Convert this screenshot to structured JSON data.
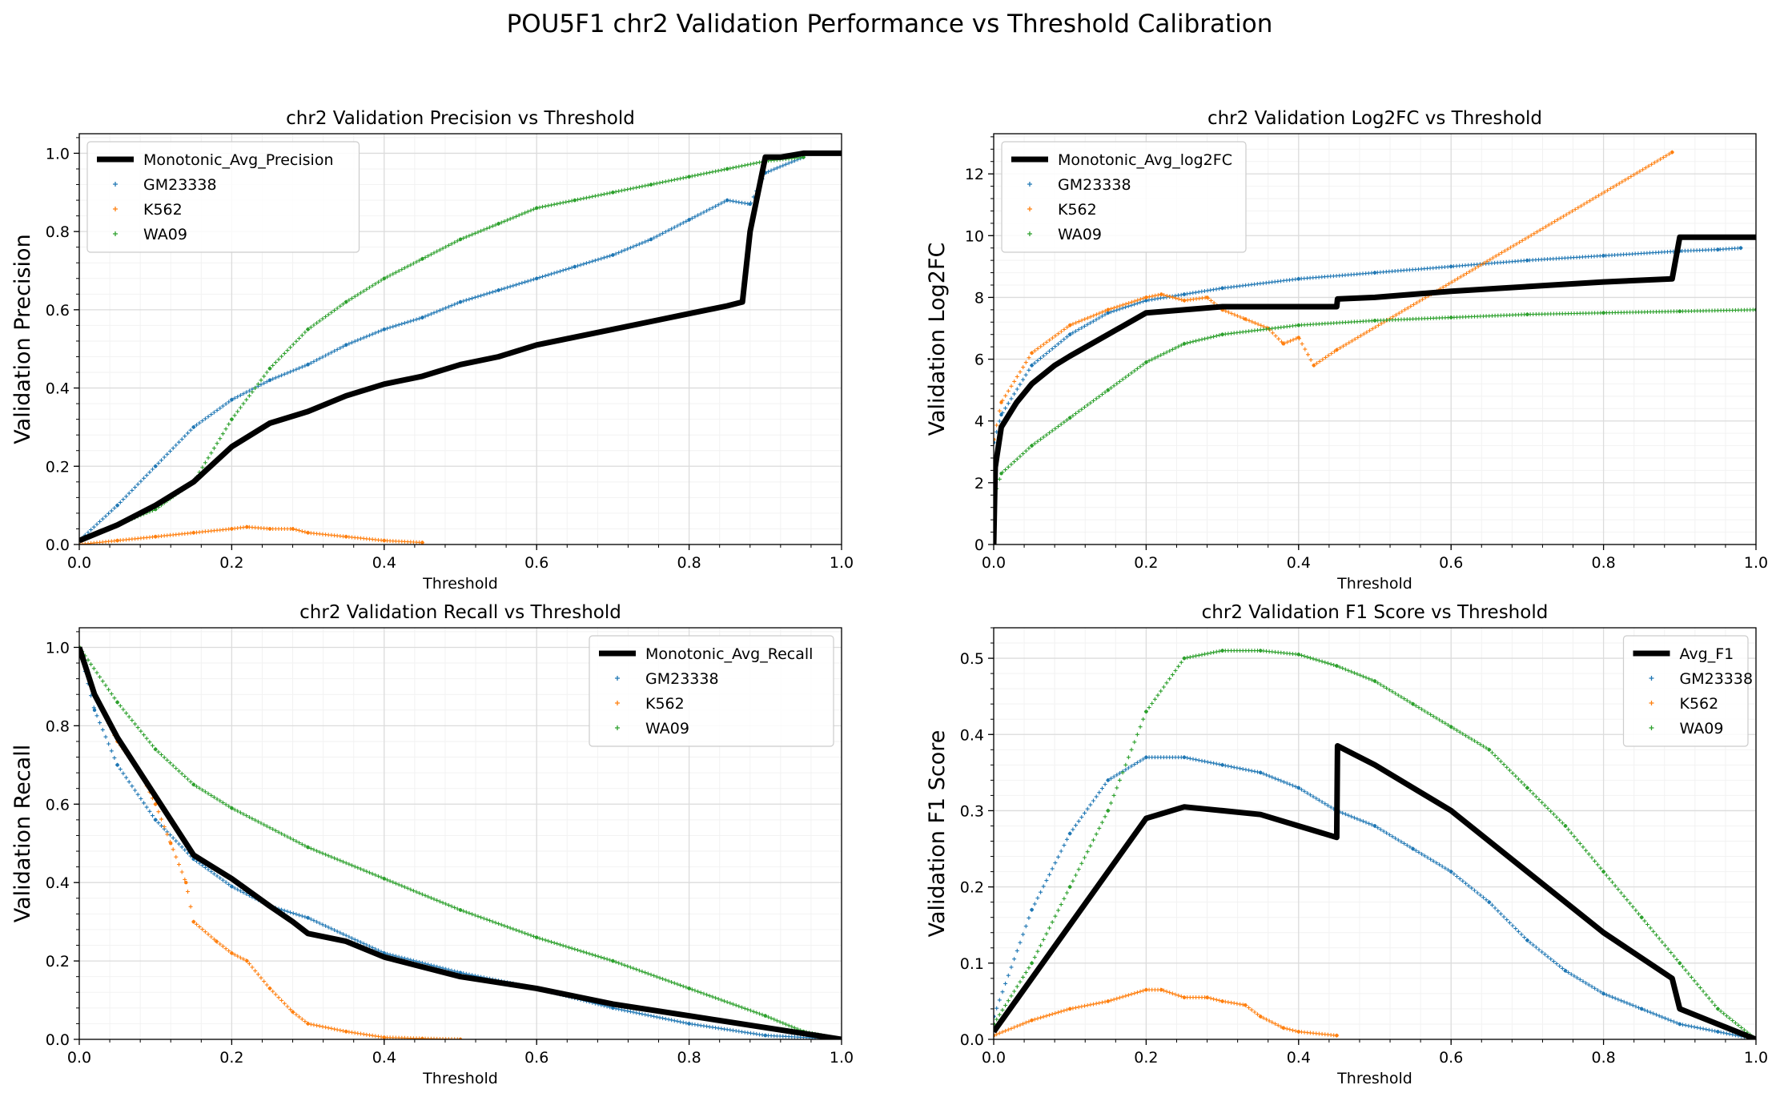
{
  "figure": {
    "suptitle": "POU5F1 chr2 Validation Performance vs Threshold Calibration"
  },
  "colors": {
    "GM23338": "#1f77b4",
    "K562": "#ff7f0e",
    "WA09": "#2ca02c",
    "average": "#000000",
    "grid": "#dcdcdc",
    "minor_grid": "#f2f2f2"
  },
  "chart_data": [
    {
      "type": "scatter",
      "title": "chr2 Validation Precision vs Threshold",
      "xlabel": "Threshold",
      "ylabel": "Validation Precision",
      "xlim": [
        0,
        1
      ],
      "ylim": [
        0,
        1.05
      ],
      "xticks": [
        0,
        0.2,
        0.4,
        0.6,
        0.8,
        1.0
      ],
      "yticks": [
        0,
        0.2,
        0.4,
        0.6,
        0.8,
        1.0
      ],
      "grid": true,
      "legend_position": "top-left",
      "series": [
        {
          "name": "Monotonic_Avg_Precision",
          "kind": "line",
          "color": "#000000",
          "x": [
            0,
            0.05,
            0.1,
            0.15,
            0.2,
            0.25,
            0.3,
            0.35,
            0.4,
            0.45,
            0.5,
            0.55,
            0.6,
            0.65,
            0.7,
            0.75,
            0.8,
            0.85,
            0.87,
            0.88,
            0.9,
            0.92,
            0.95,
            1.0
          ],
          "y": [
            0.01,
            0.05,
            0.1,
            0.16,
            0.25,
            0.31,
            0.34,
            0.38,
            0.41,
            0.43,
            0.46,
            0.48,
            0.51,
            0.53,
            0.55,
            0.57,
            0.59,
            0.61,
            0.62,
            0.8,
            0.99,
            0.99,
            1.0,
            1.0
          ]
        },
        {
          "name": "GM23338",
          "kind": "points",
          "color": "#1f77b4",
          "x": [
            0,
            0.05,
            0.1,
            0.15,
            0.2,
            0.25,
            0.3,
            0.35,
            0.4,
            0.45,
            0.5,
            0.55,
            0.6,
            0.65,
            0.7,
            0.75,
            0.8,
            0.85,
            0.88,
            0.9,
            0.95
          ],
          "y": [
            0.01,
            0.1,
            0.2,
            0.3,
            0.37,
            0.42,
            0.46,
            0.51,
            0.55,
            0.58,
            0.62,
            0.65,
            0.68,
            0.71,
            0.74,
            0.78,
            0.83,
            0.88,
            0.87,
            0.95,
            0.99
          ]
        },
        {
          "name": "K562",
          "kind": "points",
          "color": "#ff7f0e",
          "x": [
            0,
            0.05,
            0.1,
            0.15,
            0.2,
            0.22,
            0.25,
            0.28,
            0.3,
            0.35,
            0.4,
            0.45
          ],
          "y": [
            0.0,
            0.01,
            0.02,
            0.03,
            0.04,
            0.045,
            0.04,
            0.04,
            0.03,
            0.02,
            0.01,
            0.005
          ]
        },
        {
          "name": "WA09",
          "kind": "points",
          "color": "#2ca02c",
          "x": [
            0,
            0.05,
            0.1,
            0.15,
            0.2,
            0.25,
            0.3,
            0.35,
            0.4,
            0.45,
            0.5,
            0.55,
            0.6,
            0.65,
            0.7,
            0.75,
            0.8,
            0.85,
            0.9,
            0.95
          ],
          "y": [
            0.01,
            0.05,
            0.09,
            0.16,
            0.32,
            0.45,
            0.55,
            0.62,
            0.68,
            0.73,
            0.78,
            0.82,
            0.86,
            0.88,
            0.9,
            0.92,
            0.94,
            0.96,
            0.98,
            0.99
          ]
        }
      ]
    },
    {
      "type": "scatter",
      "title": "chr2 Validation Log2FC vs Threshold",
      "xlabel": "Threshold",
      "ylabel": "Validation Log2FC",
      "xlim": [
        0,
        1
      ],
      "ylim": [
        0,
        13.3
      ],
      "xticks": [
        0,
        0.2,
        0.4,
        0.6,
        0.8,
        1.0
      ],
      "yticks": [
        0,
        2,
        4,
        6,
        8,
        10,
        12
      ],
      "grid": true,
      "legend_position": "top-left",
      "series": [
        {
          "name": "Monotonic_Avg_log2FC",
          "kind": "line",
          "color": "#000000",
          "x": [
            0,
            0.002,
            0.01,
            0.03,
            0.05,
            0.08,
            0.1,
            0.15,
            0.2,
            0.25,
            0.3,
            0.35,
            0.4,
            0.45,
            0.451,
            0.5,
            0.6,
            0.7,
            0.8,
            0.89,
            0.9,
            0.95,
            1.0
          ],
          "y": [
            0,
            2.5,
            3.8,
            4.6,
            5.2,
            5.8,
            6.1,
            6.8,
            7.5,
            7.6,
            7.7,
            7.7,
            7.7,
            7.7,
            7.95,
            8.0,
            8.2,
            8.35,
            8.5,
            8.6,
            9.95,
            9.95,
            9.95
          ]
        },
        {
          "name": "GM23338",
          "kind": "points",
          "color": "#1f77b4",
          "x": [
            0,
            0.01,
            0.05,
            0.1,
            0.15,
            0.2,
            0.25,
            0.3,
            0.4,
            0.5,
            0.6,
            0.7,
            0.8,
            0.9,
            0.95,
            0.98
          ],
          "y": [
            3.3,
            4.2,
            5.8,
            6.8,
            7.5,
            7.9,
            8.1,
            8.3,
            8.6,
            8.8,
            9.0,
            9.2,
            9.35,
            9.5,
            9.55,
            9.6
          ]
        },
        {
          "name": "K562",
          "kind": "points",
          "color": "#ff7f0e",
          "x": [
            0,
            0.01,
            0.05,
            0.1,
            0.15,
            0.2,
            0.22,
            0.25,
            0.28,
            0.3,
            0.33,
            0.36,
            0.38,
            0.4,
            0.42,
            0.45,
            0.89
          ],
          "y": [
            3.4,
            4.6,
            6.2,
            7.1,
            7.6,
            8.0,
            8.1,
            7.9,
            8.0,
            7.6,
            7.3,
            7.0,
            6.5,
            6.7,
            5.8,
            6.3,
            12.7
          ]
        },
        {
          "name": "WA09",
          "kind": "points",
          "color": "#2ca02c",
          "x": [
            0,
            0.01,
            0.05,
            0.1,
            0.15,
            0.2,
            0.25,
            0.3,
            0.4,
            0.5,
            0.6,
            0.7,
            0.8,
            0.9,
            1.0
          ],
          "y": [
            1.5,
            2.3,
            3.2,
            4.1,
            5.0,
            5.9,
            6.5,
            6.8,
            7.1,
            7.25,
            7.35,
            7.45,
            7.5,
            7.55,
            7.6
          ]
        }
      ]
    },
    {
      "type": "scatter",
      "title": "chr2 Validation Recall vs Threshold",
      "xlabel": "Threshold",
      "ylabel": "Validation Recall",
      "xlim": [
        0,
        1
      ],
      "ylim": [
        0,
        1.05
      ],
      "xticks": [
        0,
        0.2,
        0.4,
        0.6,
        0.8,
        1.0
      ],
      "yticks": [
        0,
        0.2,
        0.4,
        0.6,
        0.8,
        1.0
      ],
      "grid": true,
      "legend_position": "top-right",
      "series": [
        {
          "name": "Monotonic_Avg_Recall",
          "kind": "line",
          "color": "#000000",
          "x": [
            0,
            0.02,
            0.05,
            0.1,
            0.15,
            0.2,
            0.25,
            0.28,
            0.3,
            0.35,
            0.4,
            0.5,
            0.6,
            0.7,
            0.8,
            0.9,
            1.0
          ],
          "y": [
            1.0,
            0.88,
            0.77,
            0.62,
            0.47,
            0.41,
            0.34,
            0.3,
            0.27,
            0.25,
            0.21,
            0.16,
            0.13,
            0.09,
            0.06,
            0.03,
            0.0
          ]
        },
        {
          "name": "GM23338",
          "kind": "points",
          "color": "#1f77b4",
          "x": [
            0,
            0.02,
            0.05,
            0.1,
            0.15,
            0.2,
            0.25,
            0.3,
            0.4,
            0.5,
            0.6,
            0.7,
            0.8,
            0.9,
            1.0
          ],
          "y": [
            1.0,
            0.84,
            0.7,
            0.56,
            0.46,
            0.39,
            0.34,
            0.31,
            0.22,
            0.17,
            0.13,
            0.08,
            0.04,
            0.01,
            0.0
          ]
        },
        {
          "name": "K562",
          "kind": "points",
          "color": "#ff7f0e",
          "x": [
            0,
            0.02,
            0.05,
            0.08,
            0.1,
            0.12,
            0.14,
            0.15,
            0.18,
            0.2,
            0.22,
            0.25,
            0.28,
            0.3,
            0.35,
            0.4,
            0.45,
            0.5
          ],
          "y": [
            1.0,
            0.88,
            0.76,
            0.68,
            0.6,
            0.5,
            0.4,
            0.3,
            0.25,
            0.22,
            0.2,
            0.13,
            0.07,
            0.04,
            0.02,
            0.005,
            0.002,
            0.0
          ]
        },
        {
          "name": "WA09",
          "kind": "points",
          "color": "#2ca02c",
          "x": [
            0,
            0.05,
            0.1,
            0.15,
            0.2,
            0.3,
            0.4,
            0.5,
            0.6,
            0.7,
            0.8,
            0.9,
            0.95,
            1.0
          ],
          "y": [
            1.0,
            0.86,
            0.74,
            0.65,
            0.59,
            0.49,
            0.41,
            0.33,
            0.26,
            0.2,
            0.13,
            0.06,
            0.02,
            0.0
          ]
        }
      ]
    },
    {
      "type": "scatter",
      "title": "chr2 Validation F1 Score vs Threshold",
      "xlabel": "Threshold",
      "ylabel": "Validation F1 Score",
      "xlim": [
        0,
        1
      ],
      "ylim": [
        0,
        0.54
      ],
      "xticks": [
        0,
        0.2,
        0.4,
        0.6,
        0.8,
        1.0
      ],
      "yticks": [
        0,
        0.1,
        0.2,
        0.3,
        0.4,
        0.5
      ],
      "grid": true,
      "legend_position": "top-right",
      "series": [
        {
          "name": "Avg_F1",
          "kind": "line",
          "color": "#000000",
          "x": [
            0,
            0.05,
            0.1,
            0.15,
            0.2,
            0.25,
            0.3,
            0.35,
            0.4,
            0.45,
            0.451,
            0.5,
            0.6,
            0.7,
            0.8,
            0.89,
            0.9,
            0.95,
            1.0
          ],
          "y": [
            0.01,
            0.08,
            0.15,
            0.22,
            0.29,
            0.305,
            0.3,
            0.295,
            0.28,
            0.265,
            0.385,
            0.36,
            0.3,
            0.22,
            0.14,
            0.08,
            0.04,
            0.02,
            0.0
          ]
        },
        {
          "name": "GM23338",
          "kind": "points",
          "color": "#1f77b4",
          "x": [
            0,
            0.05,
            0.1,
            0.15,
            0.2,
            0.25,
            0.3,
            0.35,
            0.4,
            0.45,
            0.5,
            0.55,
            0.6,
            0.65,
            0.7,
            0.75,
            0.8,
            0.85,
            0.9,
            0.95,
            1.0
          ],
          "y": [
            0.03,
            0.17,
            0.27,
            0.34,
            0.37,
            0.37,
            0.36,
            0.35,
            0.33,
            0.3,
            0.28,
            0.25,
            0.22,
            0.18,
            0.13,
            0.09,
            0.06,
            0.04,
            0.02,
            0.01,
            0.0
          ]
        },
        {
          "name": "K562",
          "kind": "points",
          "color": "#ff7f0e",
          "x": [
            0,
            0.05,
            0.1,
            0.15,
            0.2,
            0.22,
            0.25,
            0.28,
            0.3,
            0.33,
            0.35,
            0.38,
            0.4,
            0.45
          ],
          "y": [
            0.005,
            0.025,
            0.04,
            0.05,
            0.065,
            0.065,
            0.055,
            0.055,
            0.05,
            0.045,
            0.03,
            0.015,
            0.01,
            0.005
          ]
        },
        {
          "name": "WA09",
          "kind": "points",
          "color": "#2ca02c",
          "x": [
            0,
            0.05,
            0.1,
            0.15,
            0.2,
            0.25,
            0.3,
            0.35,
            0.4,
            0.45,
            0.5,
            0.55,
            0.6,
            0.65,
            0.7,
            0.75,
            0.8,
            0.85,
            0.9,
            0.95,
            1.0
          ],
          "y": [
            0.02,
            0.1,
            0.2,
            0.3,
            0.43,
            0.5,
            0.51,
            0.51,
            0.505,
            0.49,
            0.47,
            0.44,
            0.41,
            0.38,
            0.33,
            0.28,
            0.22,
            0.16,
            0.1,
            0.04,
            0.0
          ]
        }
      ]
    }
  ]
}
